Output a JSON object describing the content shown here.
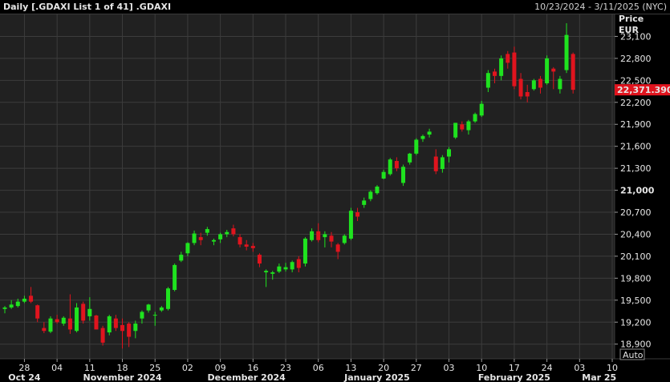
{
  "header": {
    "title": "Daily [.GDAXI List 1 of 41] .GDAXI",
    "date_range": "10/23/2024 - 3/11/2025 (NYC)"
  },
  "axis": {
    "price_label": "Price",
    "currency_label": "EUR",
    "auto_label": "Auto",
    "last_price": "22,371.390",
    "last_price_color": "#e0141e",
    "up_color": "#1fe31f",
    "down_color": "#e0141e"
  },
  "chart_data": {
    "type": "candlestick",
    "title": "Daily [.GDAXI List 1 of 41] .GDAXI",
    "ylabel": "Price EUR",
    "ylim": [
      18700,
      23400
    ],
    "y_ticks": [
      "18,900",
      "19,200",
      "19,500",
      "19,800",
      "20,100",
      "20,400",
      "20,700",
      "21,000",
      "21,300",
      "21,600",
      "21,900",
      "22,200",
      "22,500",
      "22,800",
      "23,100"
    ],
    "y_tick_values": [
      18900,
      19200,
      19500,
      19800,
      20100,
      20400,
      20700,
      21000,
      21300,
      21600,
      21900,
      22200,
      22500,
      22800,
      23100
    ],
    "bold_tick": "21,000",
    "x_ticks": [
      {
        "label": "28",
        "i": 3
      },
      {
        "label": "04",
        "i": 8
      },
      {
        "label": "11",
        "i": 13
      },
      {
        "label": "18",
        "i": 18
      },
      {
        "label": "25",
        "i": 23
      },
      {
        "label": "02",
        "i": 28
      },
      {
        "label": "09",
        "i": 33
      },
      {
        "label": "16",
        "i": 38
      },
      {
        "label": "23",
        "i": 43
      },
      {
        "label": "06",
        "i": 48
      },
      {
        "label": "13",
        "i": 53
      },
      {
        "label": "20",
        "i": 58
      },
      {
        "label": "27",
        "i": 63
      },
      {
        "label": "03",
        "i": 68
      },
      {
        "label": "10",
        "i": 73
      },
      {
        "label": "17",
        "i": 78
      },
      {
        "label": "24",
        "i": 83
      },
      {
        "label": "03",
        "i": 88
      },
      {
        "label": "10",
        "i": 93
      }
    ],
    "month_labels": [
      {
        "label": "Oct 24",
        "i": 3
      },
      {
        "label": "November 2024",
        "i": 18
      },
      {
        "label": "December 2024",
        "i": 37
      },
      {
        "label": "January 2025",
        "i": 57
      },
      {
        "label": "February 2025",
        "i": 78
      },
      {
        "label": "Mar 25",
        "i": 91
      }
    ],
    "month_separators": [
      6,
      28,
      46,
      68,
      88
    ],
    "candles": [
      {
        "o": 19380,
        "h": 19420,
        "l": 19320,
        "c": 19400
      },
      {
        "o": 19400,
        "h": 19500,
        "l": 19380,
        "c": 19440
      },
      {
        "o": 19420,
        "h": 19520,
        "l": 19400,
        "c": 19480
      },
      {
        "o": 19480,
        "h": 19560,
        "l": 19460,
        "c": 19520
      },
      {
        "o": 19560,
        "h": 19680,
        "l": 19460,
        "c": 19480
      },
      {
        "o": 19430,
        "h": 19440,
        "l": 19200,
        "c": 19250
      },
      {
        "o": 19120,
        "h": 19200,
        "l": 19050,
        "c": 19080
      },
      {
        "o": 19070,
        "h": 19280,
        "l": 19050,
        "c": 19250
      },
      {
        "o": 19240,
        "h": 19300,
        "l": 19180,
        "c": 19200
      },
      {
        "o": 19180,
        "h": 19280,
        "l": 19150,
        "c": 19260
      },
      {
        "o": 19250,
        "h": 19580,
        "l": 19040,
        "c": 19100
      },
      {
        "o": 19080,
        "h": 19460,
        "l": 19060,
        "c": 19400
      },
      {
        "o": 19450,
        "h": 19480,
        "l": 19180,
        "c": 19220
      },
      {
        "o": 19280,
        "h": 19540,
        "l": 19220,
        "c": 19380
      },
      {
        "o": 19290,
        "h": 19300,
        "l": 19100,
        "c": 19100
      },
      {
        "o": 19120,
        "h": 19150,
        "l": 18880,
        "c": 18920
      },
      {
        "o": 19060,
        "h": 19300,
        "l": 19020,
        "c": 19280
      },
      {
        "o": 19250,
        "h": 19300,
        "l": 19080,
        "c": 19120
      },
      {
        "o": 19160,
        "h": 19250,
        "l": 18840,
        "c": 19080
      },
      {
        "o": 19180,
        "h": 19200,
        "l": 18860,
        "c": 19000
      },
      {
        "o": 19080,
        "h": 19220,
        "l": 18980,
        "c": 19180
      },
      {
        "o": 19250,
        "h": 19360,
        "l": 19180,
        "c": 19340
      },
      {
        "o": 19360,
        "h": 19450,
        "l": 19330,
        "c": 19440
      },
      {
        "o": 19300,
        "h": 19340,
        "l": 19150,
        "c": 19300
      },
      {
        "o": 19360,
        "h": 19420,
        "l": 19340,
        "c": 19400
      },
      {
        "o": 19380,
        "h": 19680,
        "l": 19360,
        "c": 19660
      },
      {
        "o": 19640,
        "h": 20000,
        "l": 19620,
        "c": 19980
      },
      {
        "o": 20040,
        "h": 20160,
        "l": 20020,
        "c": 20120
      },
      {
        "o": 20140,
        "h": 20290,
        "l": 20100,
        "c": 20280
      },
      {
        "o": 20280,
        "h": 20450,
        "l": 20250,
        "c": 20410
      },
      {
        "o": 20360,
        "h": 20420,
        "l": 20250,
        "c": 20320
      },
      {
        "o": 20420,
        "h": 20500,
        "l": 20380,
        "c": 20470
      },
      {
        "o": 20300,
        "h": 20340,
        "l": 20250,
        "c": 20320
      },
      {
        "o": 20330,
        "h": 20420,
        "l": 20280,
        "c": 20400
      },
      {
        "o": 20400,
        "h": 20460,
        "l": 20360,
        "c": 20430
      },
      {
        "o": 20480,
        "h": 20530,
        "l": 20370,
        "c": 20400
      },
      {
        "o": 20360,
        "h": 20400,
        "l": 20220,
        "c": 20260
      },
      {
        "o": 20260,
        "h": 20320,
        "l": 20180,
        "c": 20230
      },
      {
        "o": 20240,
        "h": 20280,
        "l": 20160,
        "c": 20210
      },
      {
        "o": 20120,
        "h": 20140,
        "l": 19950,
        "c": 20000
      },
      {
        "o": 19880,
        "h": 19920,
        "l": 19680,
        "c": 19900
      },
      {
        "o": 19860,
        "h": 19900,
        "l": 19780,
        "c": 19880
      },
      {
        "o": 19890,
        "h": 20000,
        "l": 19870,
        "c": 19960
      },
      {
        "o": 19920,
        "h": 20010,
        "l": 19890,
        "c": 19950
      },
      {
        "o": 19920,
        "h": 20040,
        "l": 19880,
        "c": 20020
      },
      {
        "o": 20060,
        "h": 20100,
        "l": 19880,
        "c": 19940
      },
      {
        "o": 20000,
        "h": 20360,
        "l": 19960,
        "c": 20340
      },
      {
        "o": 20320,
        "h": 20480,
        "l": 20300,
        "c": 20440
      },
      {
        "o": 20440,
        "h": 20550,
        "l": 20290,
        "c": 20320
      },
      {
        "o": 20360,
        "h": 20440,
        "l": 20220,
        "c": 20400
      },
      {
        "o": 20380,
        "h": 20430,
        "l": 20220,
        "c": 20300
      },
      {
        "o": 20260,
        "h": 20280,
        "l": 20060,
        "c": 20160
      },
      {
        "o": 20280,
        "h": 20400,
        "l": 20260,
        "c": 20380
      },
      {
        "o": 20340,
        "h": 20760,
        "l": 20320,
        "c": 20720
      },
      {
        "o": 20700,
        "h": 20760,
        "l": 20580,
        "c": 20640
      },
      {
        "o": 20800,
        "h": 20900,
        "l": 20760,
        "c": 20860
      },
      {
        "o": 20880,
        "h": 21000,
        "l": 20850,
        "c": 20980
      },
      {
        "o": 20960,
        "h": 21070,
        "l": 20940,
        "c": 21050
      },
      {
        "o": 21160,
        "h": 21280,
        "l": 21150,
        "c": 21250
      },
      {
        "o": 21220,
        "h": 21440,
        "l": 21200,
        "c": 21420
      },
      {
        "o": 21400,
        "h": 21450,
        "l": 21260,
        "c": 21300
      },
      {
        "o": 21100,
        "h": 21350,
        "l": 21060,
        "c": 21320
      },
      {
        "o": 21380,
        "h": 21510,
        "l": 21350,
        "c": 21500
      },
      {
        "o": 21500,
        "h": 21710,
        "l": 21480,
        "c": 21690
      },
      {
        "o": 21700,
        "h": 21760,
        "l": 21660,
        "c": 21740
      },
      {
        "o": 21760,
        "h": 21840,
        "l": 21720,
        "c": 21800
      },
      {
        "o": 21460,
        "h": 21560,
        "l": 21220,
        "c": 21260
      },
      {
        "o": 21290,
        "h": 21480,
        "l": 21240,
        "c": 21450
      },
      {
        "o": 21460,
        "h": 21590,
        "l": 21380,
        "c": 21560
      },
      {
        "o": 21720,
        "h": 21920,
        "l": 21700,
        "c": 21920
      },
      {
        "o": 21900,
        "h": 21940,
        "l": 21800,
        "c": 21830
      },
      {
        "o": 21820,
        "h": 21960,
        "l": 21760,
        "c": 21940
      },
      {
        "o": 21940,
        "h": 22060,
        "l": 21920,
        "c": 22040
      },
      {
        "o": 22020,
        "h": 22220,
        "l": 22000,
        "c": 22180
      },
      {
        "o": 22400,
        "h": 22640,
        "l": 22340,
        "c": 22600
      },
      {
        "o": 22620,
        "h": 22660,
        "l": 22460,
        "c": 22560
      },
      {
        "o": 22560,
        "h": 22840,
        "l": 22500,
        "c": 22800
      },
      {
        "o": 22860,
        "h": 22900,
        "l": 22660,
        "c": 22740
      },
      {
        "o": 22880,
        "h": 22960,
        "l": 22380,
        "c": 22420
      },
      {
        "o": 22520,
        "h": 22600,
        "l": 22240,
        "c": 22280
      },
      {
        "o": 22340,
        "h": 22440,
        "l": 22200,
        "c": 22280
      },
      {
        "o": 22380,
        "h": 22520,
        "l": 22360,
        "c": 22500
      },
      {
        "o": 22520,
        "h": 22560,
        "l": 22320,
        "c": 22400
      },
      {
        "o": 22460,
        "h": 22840,
        "l": 22440,
        "c": 22800
      },
      {
        "o": 22660,
        "h": 22680,
        "l": 22380,
        "c": 22620
      },
      {
        "o": 22380,
        "h": 22560,
        "l": 22320,
        "c": 22520
      },
      {
        "o": 22640,
        "h": 23280,
        "l": 22600,
        "c": 23120
      },
      {
        "o": 22860,
        "h": 22880,
        "l": 22320,
        "c": 22371
      }
    ]
  }
}
